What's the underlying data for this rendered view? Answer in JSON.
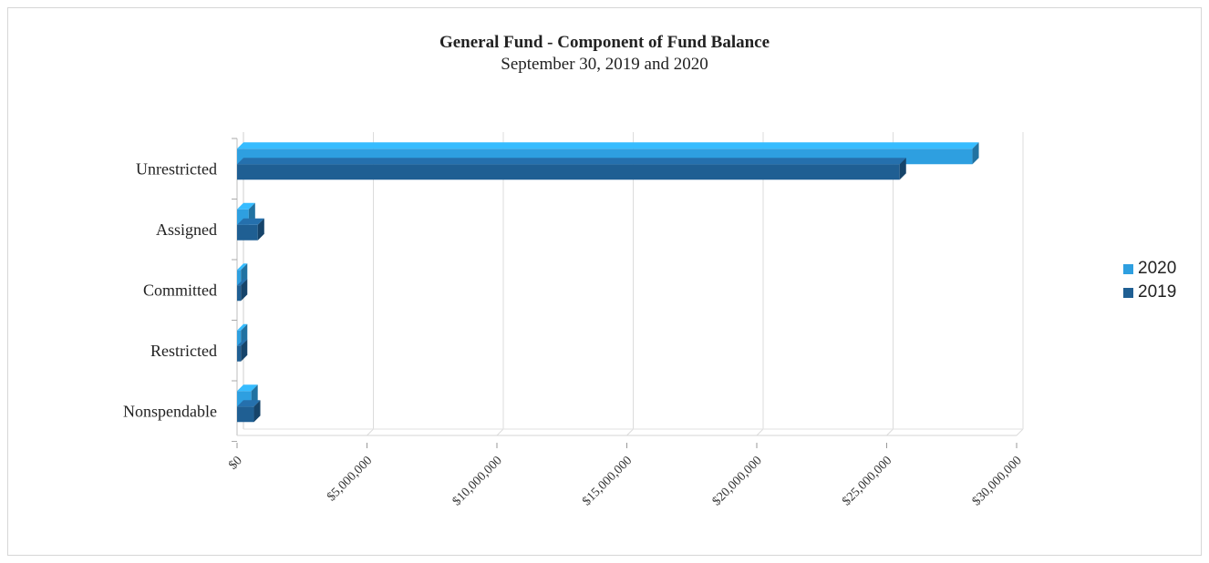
{
  "chart_data": {
    "type": "bar",
    "orientation": "horizontal",
    "title": "General Fund - Component of Fund Balance",
    "subtitle": "September 30, 2019 and 2020",
    "categories": [
      "Unrestricted",
      "Assigned",
      "Committed",
      "Restricted",
      "Nonspendable"
    ],
    "series": [
      {
        "name": "2020",
        "color": "#2e9fe0",
        "values": [
          28300000,
          450000,
          150000,
          150000,
          550000
        ]
      },
      {
        "name": "2019",
        "color": "#1f5f93",
        "values": [
          25500000,
          800000,
          150000,
          150000,
          650000
        ]
      }
    ],
    "xlim": [
      0,
      30000000
    ],
    "x_ticks": [
      "$0",
      "$5,000,000",
      "$10,000,000",
      "$15,000,000",
      "$20,000,000",
      "$25,000,000",
      "$30,000,000"
    ],
    "x_tick_values": [
      0,
      5000000,
      10000000,
      15000000,
      20000000,
      25000000,
      30000000
    ],
    "grid": true,
    "legend": "right"
  }
}
